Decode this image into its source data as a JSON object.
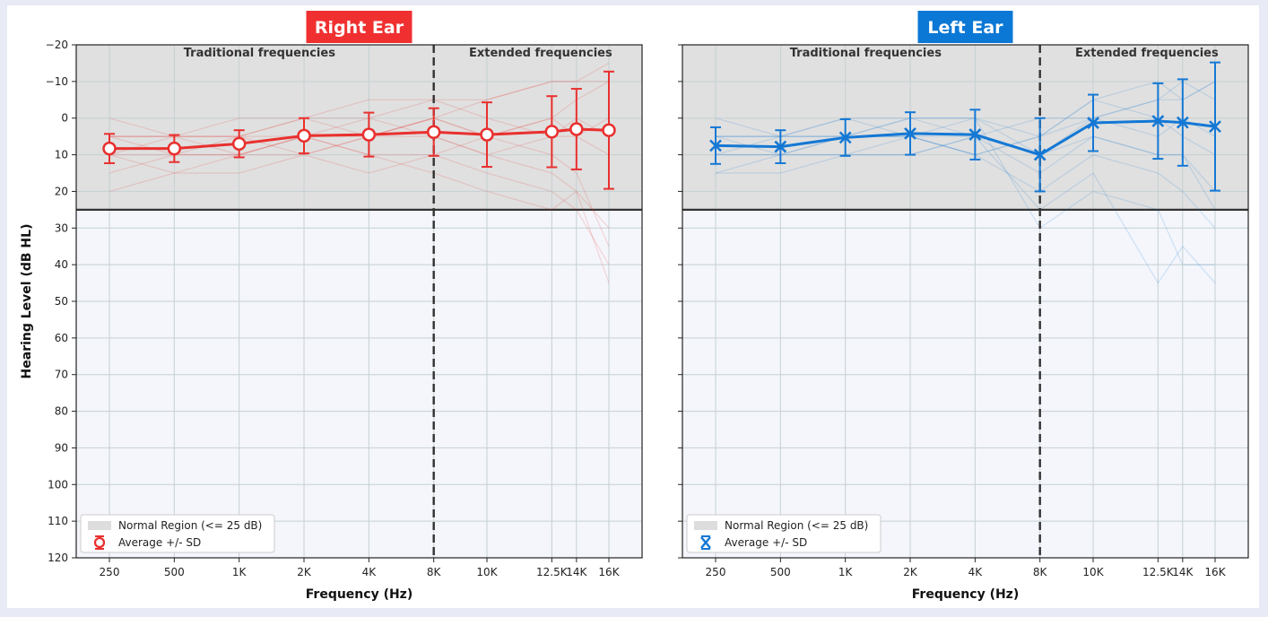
{
  "figure": {
    "ylabel": "Hearing Level (dB HL)",
    "grid": true,
    "legend_placement": "lower-left"
  },
  "chart_data": [
    {
      "type": "line",
      "title": "Right Ear",
      "title_color": "#f03030",
      "series_color": "#e8302e",
      "marker": "open-circle",
      "xlabel": "Frequency (Hz)",
      "ylabel": "Hearing Level (dB HL)",
      "x_ticks": [
        "250",
        "500",
        "1K",
        "2K",
        "4K",
        "8K",
        "10K",
        "12.5K",
        "14K",
        "16K"
      ],
      "x_values_hz": [
        250,
        500,
        1000,
        2000,
        4000,
        8000,
        10000,
        12500,
        14000,
        16000
      ],
      "ylim": [
        120,
        -20
      ],
      "y_ticks": [
        -20,
        -10,
        0,
        10,
        20,
        30,
        40,
        50,
        60,
        70,
        80,
        90,
        100,
        110,
        120
      ],
      "y_inverted": true,
      "normal_region_max_db": 25,
      "region_labels": [
        "Traditional frequencies",
        "Extended frequencies"
      ],
      "region_divider_hz": 8000,
      "series": [
        {
          "name": "Average +/- SD",
          "mean": [
            8.3,
            8.3,
            7.0,
            4.8,
            4.5,
            3.8,
            4.5,
            3.7,
            3.0,
            3.3
          ],
          "sd": [
            4.0,
            3.7,
            3.7,
            4.8,
            6.0,
            6.5,
            8.8,
            9.7,
            11.0,
            16.0
          ]
        }
      ],
      "individual_series": [
        [
          5,
          5,
          5,
          0,
          0,
          5,
          10,
          5,
          5,
          0
        ],
        [
          10,
          10,
          10,
          5,
          5,
          0,
          5,
          0,
          -5,
          -10
        ],
        [
          5,
          10,
          5,
          5,
          10,
          10,
          15,
          20,
          25,
          40
        ],
        [
          10,
          5,
          10,
          5,
          0,
          -5,
          0,
          5,
          0,
          5
        ],
        [
          15,
          10,
          10,
          10,
          5,
          5,
          10,
          15,
          20,
          45
        ],
        [
          5,
          5,
          0,
          0,
          5,
          0,
          -5,
          -10,
          -10,
          -10
        ],
        [
          10,
          15,
          10,
          5,
          10,
          15,
          20,
          25,
          20,
          30
        ],
        [
          5,
          5,
          5,
          10,
          5,
          0,
          5,
          0,
          5,
          10
        ],
        [
          20,
          15,
          15,
          10,
          15,
          10,
          5,
          10,
          15,
          35
        ],
        [
          0,
          5,
          5,
          0,
          -5,
          -5,
          -5,
          -10,
          -10,
          -15
        ]
      ],
      "legend": [
        {
          "label": "Normal Region (<= 25 dB)",
          "kind": "patch",
          "color": "#dddddd"
        },
        {
          "label": "Average +/- SD",
          "kind": "marker"
        }
      ]
    },
    {
      "type": "line",
      "title": "Left Ear",
      "title_color": "#0b78d6",
      "series_color": "#1478d4",
      "marker": "x",
      "xlabel": "Frequency (Hz)",
      "ylabel": "Hearing Level (dB HL)",
      "x_ticks": [
        "250",
        "500",
        "1K",
        "2K",
        "4K",
        "8K",
        "10K",
        "12.5K",
        "14K",
        "16K"
      ],
      "x_values_hz": [
        250,
        500,
        1000,
        2000,
        4000,
        8000,
        10000,
        12500,
        14000,
        16000
      ],
      "ylim": [
        120,
        -20
      ],
      "y_ticks": [
        -20,
        -10,
        0,
        10,
        20,
        30,
        40,
        50,
        60,
        70,
        80,
        90,
        100,
        110,
        120
      ],
      "y_inverted": true,
      "normal_region_max_db": 25,
      "region_labels": [
        "Traditional frequencies",
        "Extended frequencies"
      ],
      "region_divider_hz": 8000,
      "series": [
        {
          "name": "Average +/- SD",
          "mean": [
            7.5,
            7.8,
            5.3,
            4.2,
            4.5,
            10.0,
            1.3,
            0.8,
            1.2,
            2.3
          ],
          "sd": [
            5.0,
            4.5,
            5.0,
            5.8,
            6.8,
            10.0,
            7.7,
            10.3,
            11.8,
            17.5
          ]
        }
      ],
      "individual_series": [
        [
          5,
          5,
          5,
          0,
          0,
          10,
          0,
          -5,
          -5,
          -10
        ],
        [
          10,
          10,
          5,
          5,
          10,
          20,
          10,
          15,
          20,
          30
        ],
        [
          5,
          5,
          0,
          0,
          0,
          5,
          -5,
          -10,
          -5,
          -10
        ],
        [
          15,
          10,
          10,
          10,
          5,
          15,
          5,
          10,
          10,
          25
        ],
        [
          5,
          10,
          5,
          5,
          5,
          0,
          0,
          -5,
          -10,
          -5
        ],
        [
          10,
          5,
          5,
          0,
          5,
          25,
          15,
          45,
          35,
          45
        ],
        [
          0,
          5,
          0,
          5,
          10,
          5,
          -5,
          0,
          5,
          10
        ],
        [
          10,
          10,
          10,
          10,
          5,
          10,
          5,
          10,
          10,
          20
        ],
        [
          5,
          5,
          5,
          5,
          0,
          30,
          20,
          25,
          40,
          40
        ],
        [
          15,
          15,
          10,
          5,
          10,
          5,
          0,
          5,
          0,
          5
        ]
      ],
      "legend": [
        {
          "label": "Normal Region (<= 25 dB)",
          "kind": "patch",
          "color": "#dddddd"
        },
        {
          "label": "Average +/- SD",
          "kind": "marker"
        }
      ]
    }
  ]
}
